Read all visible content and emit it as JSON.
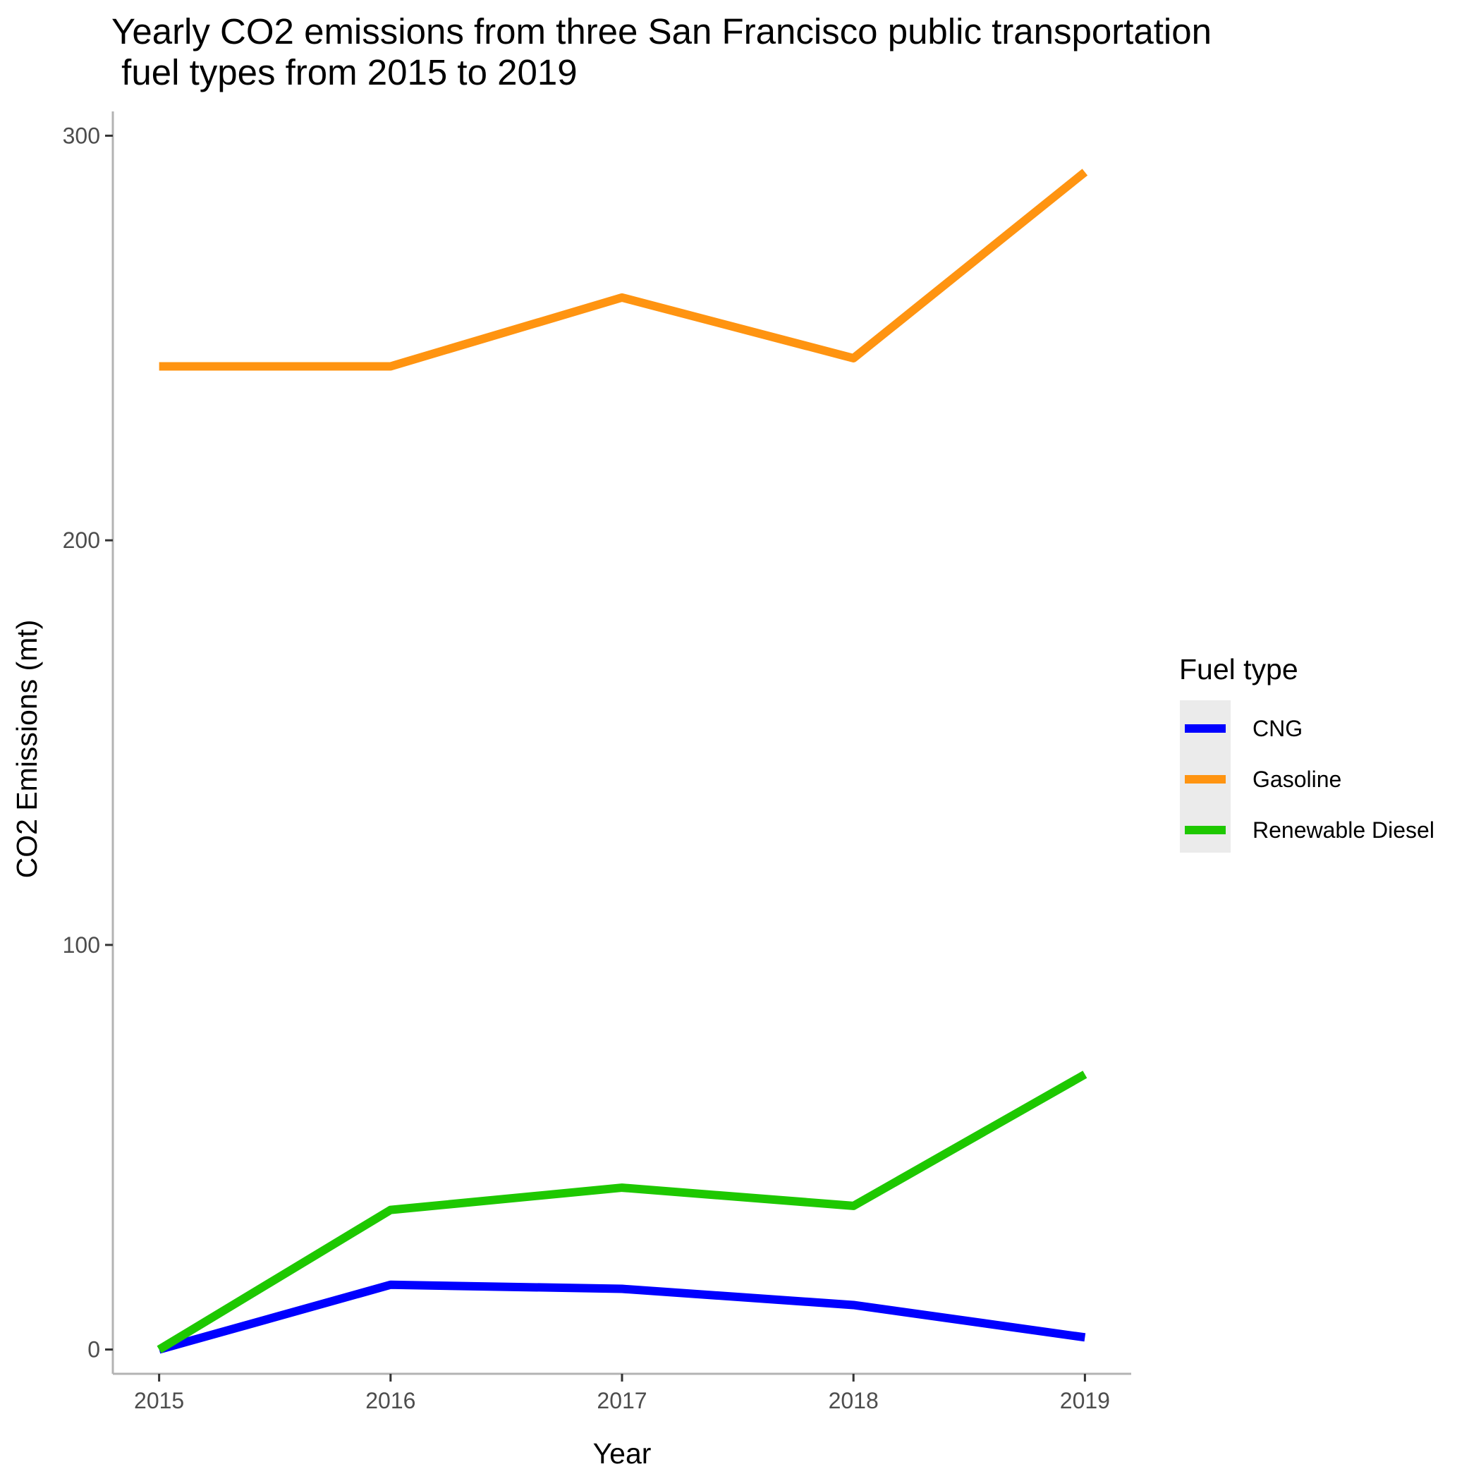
{
  "chart_data": {
    "type": "line",
    "title_line1": "Yearly CO2 emissions from three San Francisco public transportation",
    "title_line2": " fuel types from 2015 to 2019",
    "xlabel": "Year",
    "ylabel": "CO2 Emissions (mt)",
    "x": [
      2015,
      2016,
      2017,
      2018,
      2019
    ],
    "x_tick_labels": [
      "2015",
      "2016",
      "2017",
      "2018",
      "2019"
    ],
    "y_ticks": [
      0,
      100,
      200,
      300
    ],
    "y_tick_labels": [
      "0",
      "100",
      "200",
      "300"
    ],
    "ylim": [
      -6,
      306
    ],
    "xlim": [
      2014.8,
      2019.2
    ],
    "grid": false,
    "legend": {
      "title": "Fuel type",
      "placement": "right"
    },
    "series": [
      {
        "name": "CNG",
        "color": "#0000ff",
        "values": [
          0,
          16,
          15,
          11,
          3
        ]
      },
      {
        "name": "Gasoline",
        "color": "#ff9411",
        "values": [
          243,
          243,
          260,
          245,
          291
        ]
      },
      {
        "name": "Renewable Diesel",
        "color": "#1ec800",
        "values": [
          0,
          34.5,
          40,
          35.5,
          68
        ]
      }
    ]
  }
}
